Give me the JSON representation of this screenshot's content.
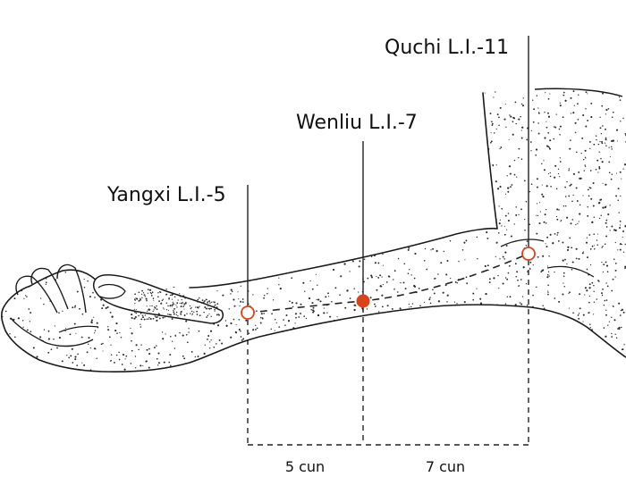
{
  "colors": {
    "stipple": "#2a2a2a",
    "outline": "#1a1a1a",
    "point_accent": "#d9441c",
    "guide": "#222222"
  },
  "points": {
    "yangxi": {
      "label": "Yangxi L.I.-5",
      "style": "open-circle"
    },
    "wenliu": {
      "label": "Wenliu L.I.-7",
      "style": "filled-circle"
    },
    "quchi": {
      "label": "Quchi L.I.-11",
      "style": "open-circle"
    }
  },
  "measurements": {
    "first": "5 cun",
    "second": "7 cun"
  }
}
